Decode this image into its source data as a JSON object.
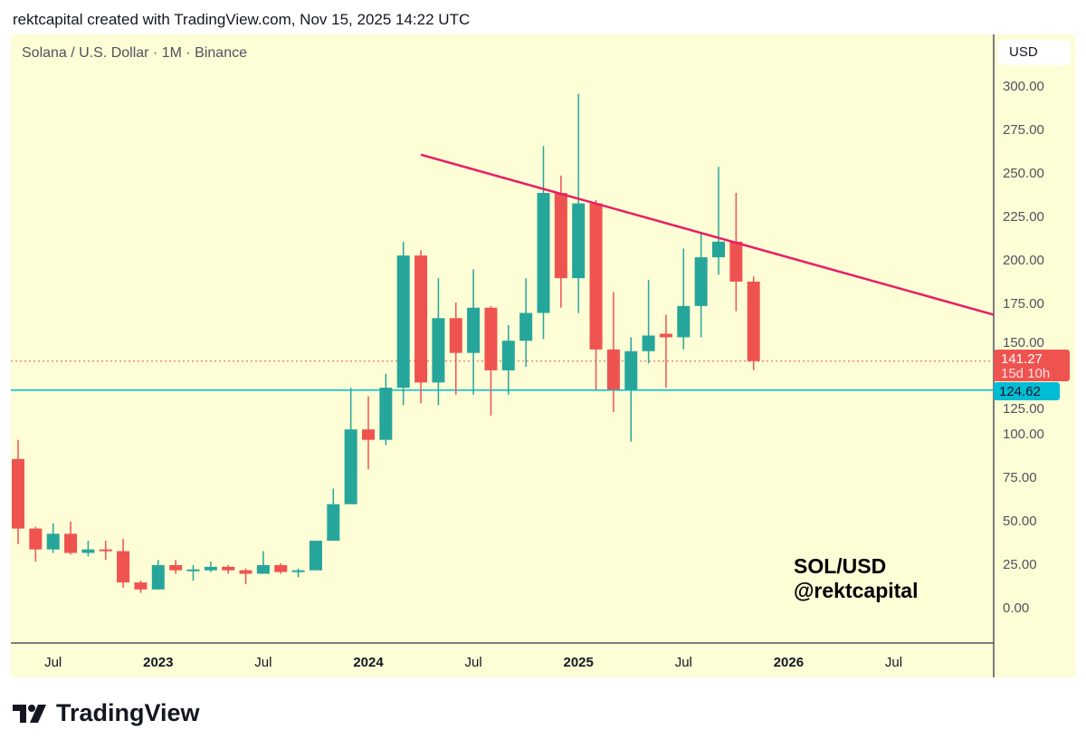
{
  "header": {
    "credit": "rektcapital created with TradingView.com, Nov 15, 2025 14:22 UTC"
  },
  "chart_title": "Solana / U.S. Dollar · 1M · Binance",
  "currency_button": "USD",
  "watermark": {
    "line1": "SOL/USD",
    "line2": "@rektcapital"
  },
  "footer": {
    "logo_text": "TradingView"
  },
  "colors": {
    "up": "#26a69a",
    "down": "#ef5350",
    "trendline": "#e91e63",
    "support": "#00bcd4",
    "background": "#fdfdd6"
  },
  "chart_data": {
    "type": "candlestick",
    "title": "Solana / U.S. Dollar · 1M · Binance",
    "ylim": [
      0,
      300
    ],
    "y_ticks": [
      "0.00",
      "25.00",
      "50.00",
      "75.00",
      "100.00",
      "125.00",
      "150.00",
      "175.00",
      "200.00",
      "225.00",
      "250.00",
      "275.00",
      "300.00"
    ],
    "y_tick_values": [
      0,
      25,
      50,
      75,
      100,
      125,
      150,
      175,
      200,
      225,
      250,
      275,
      300
    ],
    "x_ticks": [
      {
        "label": "Jul",
        "index": 2
      },
      {
        "label": "2023",
        "index": 8,
        "bold": true
      },
      {
        "label": "Jul",
        "index": 14
      },
      {
        "label": "2024",
        "index": 20,
        "bold": true
      },
      {
        "label": "Jul",
        "index": 26
      },
      {
        "label": "2025",
        "index": 32,
        "bold": true
      },
      {
        "label": "Jul",
        "index": 38
      },
      {
        "label": "2026",
        "index": 44,
        "bold": true
      },
      {
        "label": "Jul",
        "index": 50
      }
    ],
    "start_month": "2022-05",
    "candles": [
      [
        85,
        96,
        36,
        45
      ],
      [
        45,
        46,
        26,
        33
      ],
      [
        33,
        48,
        31,
        42
      ],
      [
        42,
        49,
        30,
        31
      ],
      [
        31,
        38,
        29,
        33
      ],
      [
        33,
        38,
        27,
        32
      ],
      [
        32,
        39,
        11,
        14
      ],
      [
        14,
        15,
        8,
        10
      ],
      [
        10,
        27,
        10,
        24
      ],
      [
        24,
        27,
        19,
        21
      ],
      [
        21,
        24,
        15,
        21.5
      ],
      [
        21,
        26,
        20,
        23
      ],
      [
        23,
        24,
        19,
        21
      ],
      [
        21,
        22,
        13,
        19
      ],
      [
        19,
        32,
        19,
        24
      ],
      [
        24,
        25,
        19,
        20
      ],
      [
        20,
        22,
        17,
        21
      ],
      [
        21,
        38,
        21,
        38
      ],
      [
        38,
        68,
        38,
        59
      ],
      [
        59,
        126,
        59,
        102
      ],
      [
        102,
        121,
        79,
        96
      ],
      [
        96,
        134,
        93,
        126
      ],
      [
        126,
        210,
        116,
        202
      ],
      [
        202,
        205,
        117,
        129
      ],
      [
        129,
        189,
        116,
        166
      ],
      [
        166,
        175,
        122,
        146
      ],
      [
        146,
        194,
        122,
        172
      ],
      [
        172,
        173,
        110,
        136
      ],
      [
        136,
        162,
        122,
        153
      ],
      [
        153,
        189,
        138,
        169
      ],
      [
        169,
        265,
        154,
        238
      ],
      [
        238,
        248,
        172,
        189
      ],
      [
        189,
        295,
        169,
        232
      ],
      [
        232,
        234,
        125,
        148
      ],
      [
        148,
        181,
        112,
        125
      ],
      [
        125,
        155,
        95,
        147
      ],
      [
        147,
        188,
        140,
        156
      ],
      [
        157,
        168,
        126,
        155
      ],
      [
        155,
        206,
        148,
        173
      ],
      [
        173,
        215,
        155,
        201
      ],
      [
        201,
        253,
        191,
        210
      ],
      [
        210,
        238,
        170,
        187
      ],
      [
        187,
        190,
        136,
        141.27
      ]
    ],
    "trendline": {
      "from": {
        "index": 23,
        "price": 260
      },
      "to": {
        "index": 55.7,
        "price": 168
      }
    },
    "support_level": {
      "value": 124.62,
      "label": "124.62"
    },
    "last_price": {
      "value": 141.27,
      "label": "141.27",
      "countdown": "15d 10h"
    }
  }
}
